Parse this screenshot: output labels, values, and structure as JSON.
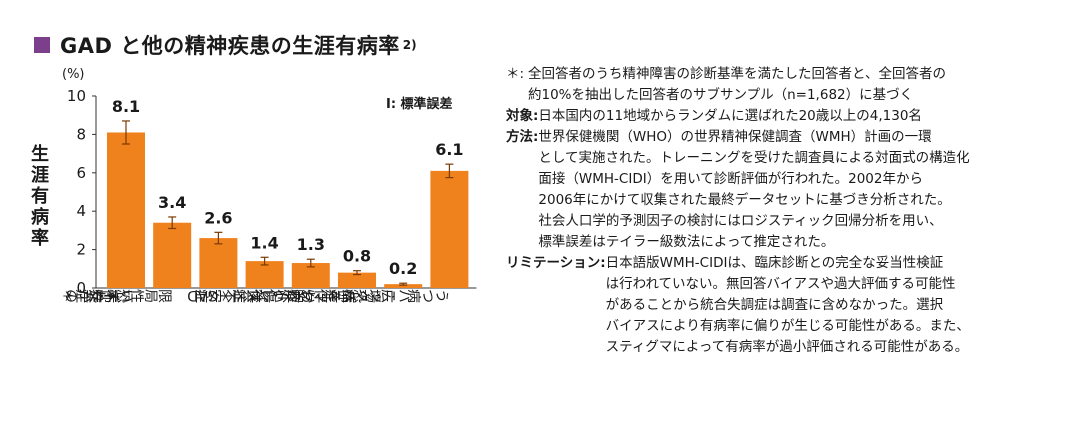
{
  "title": {
    "main": "GAD と他の精神疾患の生涯有病率",
    "superscript": "2)"
  },
  "chart_data": {
    "type": "bar",
    "ylabel": "生涯有病率",
    "yunit": "(%)",
    "ylim": [
      0,
      10
    ],
    "yticks": [
      0,
      2,
      4,
      6,
      8,
      10
    ],
    "legend_text": "I: 標準誤差",
    "categories": [
      "いずれかの不安症＊",
      "限局性恐怖症",
      "GAD",
      "社交不安症",
      "心的外傷後ストレス症＊",
      "パニック症",
      "パニック症を伴わない広場恐怖症",
      "うつ病"
    ],
    "category_lines": [
      [
        "いずれかの",
        "不安症＊"
      ],
      [
        "限局性恐怖症"
      ],
      [
        "GAD"
      ],
      [
        "社交不安症"
      ],
      [
        "心的外傷後",
        "ストレス症＊"
      ],
      [
        "パニック症"
      ],
      [
        "パニック症を伴わない",
        "広場恐怖症"
      ],
      [
        "うつ病"
      ]
    ],
    "values": [
      8.1,
      3.4,
      2.6,
      1.4,
      1.3,
      0.8,
      0.2,
      6.1
    ],
    "value_labels": [
      "8.1",
      "3.4",
      "2.6",
      "1.4",
      "1.3",
      "0.8",
      "0.2",
      "6.1"
    ],
    "errors": [
      0.6,
      0.3,
      0.3,
      0.2,
      0.2,
      0.1,
      0.05,
      0.35
    ],
    "bar_color": "#f0821e",
    "grid": false
  },
  "notes": {
    "asterisk_mark": "＊:",
    "asterisk_line1": "全回答者のうち精神障害の診断基準を満たした回答者と、全回答者の",
    "asterisk_line2": "約10%を抽出した回答者のサブサンプル（n=1,682）に基づく",
    "subject_label": "対象:",
    "subject_text": "日本国内の11地域からランダムに選ばれた20歳以上の4,130名",
    "method_label": "方法:",
    "method_lines": [
      "世界保健機関（WHO）の世界精神保健調査（WMH）計画の一環",
      "として実施された。トレーニングを受けた調査員による対面式の構造化",
      "面接（WMH-CIDI）を用いて診断評価が行われた。2002年から",
      "2006年にかけて収集された最終データセットに基づき分析された。",
      "社会人口学的予測因子の検討にはロジスティック回帰分析を用い、",
      "標準誤差はテイラー級数法によって推定された。"
    ],
    "limitation_label": "リミテーション:",
    "limitation_lines": [
      "日本語版WMH-CIDIは、臨床診断との完全な妥当性検証",
      "は行われていない。無回答バイアスや過大評価する可能性",
      "があることから統合失調症は調査に含めなかった。選択",
      "バイアスにより有病率に偏りが生じる可能性がある。また、",
      "スティグマによって有病率が過小評価される可能性がある。"
    ]
  }
}
